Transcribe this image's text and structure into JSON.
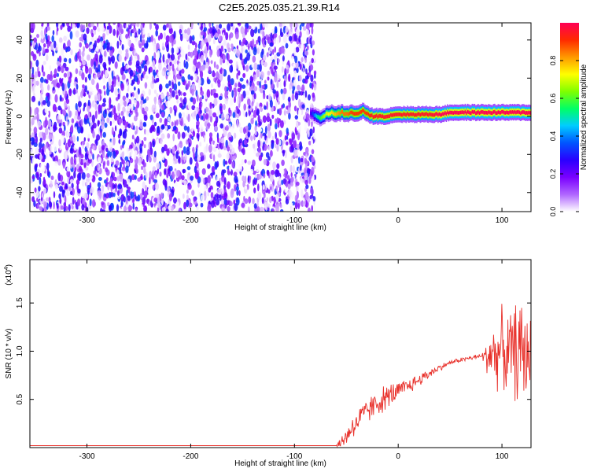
{
  "title": "C2E5.2025.035.21.39.R14",
  "chart_data": [
    {
      "type": "heatmap",
      "title": "C2E5.2025.035.21.39.R14",
      "xlabel": "Height of straight line (km)",
      "ylabel": "Frequency (Hz)",
      "xlim": [
        -355,
        128
      ],
      "ylim": [
        -50,
        49
      ],
      "x_ticks": [
        -300,
        -200,
        -100,
        0,
        100
      ],
      "y_ticks": [
        -40,
        -20,
        0,
        20,
        40
      ],
      "x_tick_labels": [
        "-300",
        "-200",
        "-100",
        "0",
        "100"
      ],
      "y_tick_labels": [
        "-40",
        "-20",
        "0",
        "20",
        "40"
      ],
      "noise_region": {
        "x_range": [
          -355,
          -80
        ],
        "freq_range": [
          -50,
          49
        ],
        "amplitude_range": [
          0.0,
          0.35
        ]
      },
      "signal_line": {
        "x": [
          -85,
          -80,
          -75,
          -70,
          -65,
          -60,
          -55,
          -50,
          -45,
          -40,
          -35,
          -30,
          -25,
          -20,
          -15,
          -10,
          -5,
          0,
          10,
          20,
          30,
          40,
          50,
          60,
          70,
          80,
          90,
          100,
          110,
          120,
          128
        ],
        "freq": [
          2,
          0,
          -1,
          1,
          2,
          1,
          2,
          1,
          2,
          1,
          3,
          1,
          0,
          0,
          0,
          0,
          1,
          1,
          1,
          1,
          1,
          1,
          2,
          2,
          2,
          2,
          2,
          2,
          2,
          2,
          2
        ],
        "amplitude": [
          0.25,
          0.45,
          0.6,
          0.7,
          0.75,
          0.8,
          0.85,
          0.85,
          0.9,
          0.9,
          0.9,
          0.9,
          0.95,
          0.95,
          0.95,
          0.95,
          0.95,
          0.95,
          0.95,
          0.95,
          0.95,
          1.0,
          1.0,
          1.0,
          1.0,
          1.0,
          1.0,
          1.0,
          1.0,
          1.0,
          1.0
        ]
      },
      "colorbar": {
        "label": "Normalized spectral amplitude",
        "range": [
          0.0,
          1.0
        ],
        "ticks": [
          0.0,
          0.2,
          0.4,
          0.6,
          0.8
        ],
        "tick_labels": [
          "0.0",
          "0.2",
          "0.4",
          "0.6",
          "0.8"
        ],
        "colors": [
          "#ffffff",
          "#b066ff",
          "#7a00ff",
          "#2a00ff",
          "#0055ff",
          "#00ccff",
          "#00ff66",
          "#7fff00",
          "#ffff00",
          "#ff9900",
          "#ff2a00",
          "#ff0055"
        ]
      }
    },
    {
      "type": "line",
      "xlabel": "Height of straight line (km)",
      "ylabel": "SNR (10 * v/v)",
      "scale_label": "(x10",
      "scale_exponent": "4",
      "xlim": [
        -355,
        128
      ],
      "ylim": [
        0,
        1.95
      ],
      "x_ticks": [
        -300,
        -200,
        -100,
        0,
        100
      ],
      "y_ticks": [
        0.5,
        1.0,
        1.5
      ],
      "x_tick_labels": [
        "-300",
        "-200",
        "-100",
        "0",
        "100"
      ],
      "y_tick_labels": [
        "0.5",
        "1.0",
        "1.5"
      ],
      "series": [
        {
          "color": "#e8302a",
          "x": [
            -355,
            -60,
            -55,
            -50,
            -45,
            -40,
            -35,
            -30,
            -25,
            -20,
            -15,
            -10,
            -5,
            0,
            10,
            20,
            30,
            40,
            50,
            60,
            70,
            80,
            85,
            90,
            95,
            100,
            105,
            110,
            115,
            120,
            125,
            128
          ],
          "values": [
            0.02,
            0.02,
            0.05,
            0.12,
            0.2,
            0.26,
            0.32,
            0.38,
            0.42,
            0.46,
            0.5,
            0.53,
            0.56,
            0.58,
            0.64,
            0.7,
            0.77,
            0.83,
            0.88,
            0.91,
            0.93,
            0.95,
            0.93,
            1.0,
            0.95,
            1.05,
            0.95,
            1.0,
            1.0,
            1.0,
            0.95,
            1.0
          ],
          "noise_envelope": [
            0.0,
            0.0,
            0.08,
            0.12,
            0.14,
            0.16,
            0.16,
            0.16,
            0.16,
            0.16,
            0.16,
            0.15,
            0.14,
            0.12,
            0.1,
            0.08,
            0.06,
            0.04,
            0.03,
            0.03,
            0.03,
            0.03,
            0.2,
            0.35,
            0.4,
            0.45,
            0.5,
            0.55,
            0.6,
            0.7,
            0.5,
            0.4
          ]
        }
      ]
    }
  ]
}
